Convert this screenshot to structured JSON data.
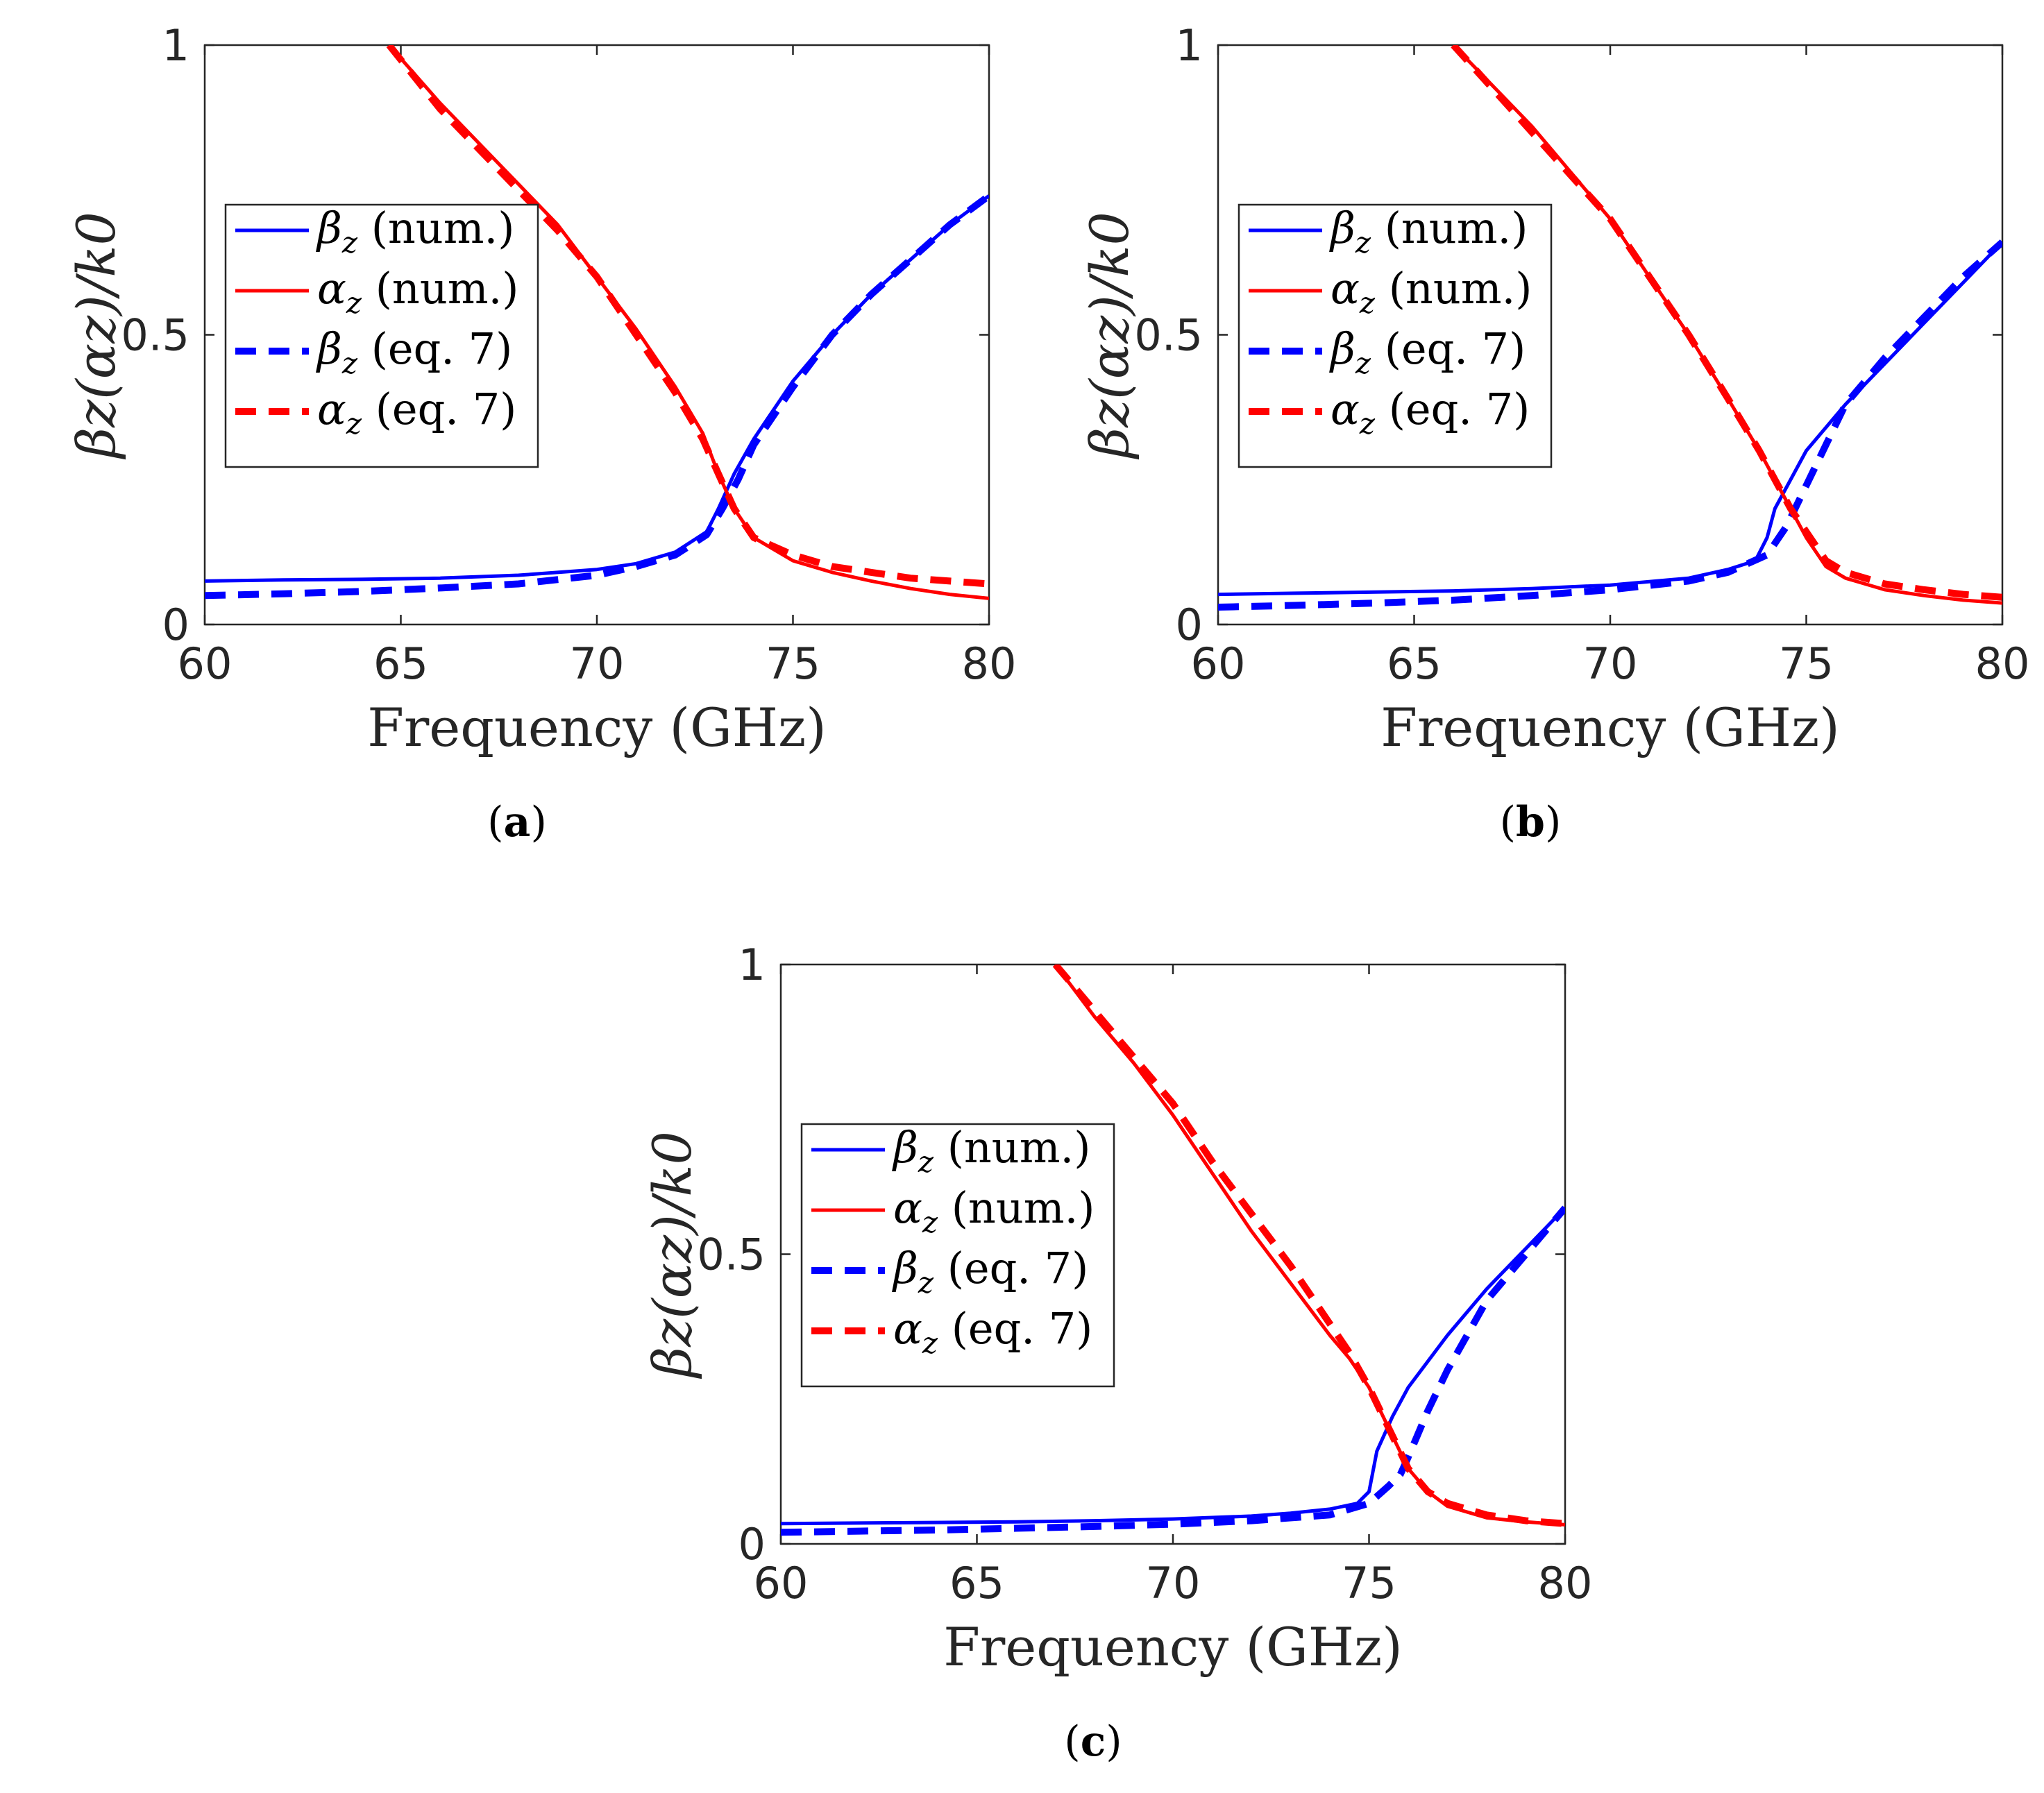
{
  "chart_data": [
    {
      "type": "line",
      "caption": "a",
      "xlabel": "Frequency (GHz)",
      "ylabel": "βz(αz)/k0",
      "xlim": [
        60,
        80
      ],
      "ylim": [
        0,
        1
      ],
      "xticks": [
        "60",
        "65",
        "70",
        "75",
        "80"
      ],
      "yticks": [
        "0",
        "0.5",
        "1"
      ],
      "legend": [
        "βz (num.)",
        "αz (num.)",
        "βz (eq. 7)",
        "αz (eq. 7)"
      ],
      "legend_position": "center-left",
      "series": [
        {
          "name": "βz (num.)",
          "color": "#0000ff",
          "style": "solid",
          "x": [
            60,
            62,
            64,
            66,
            68,
            70,
            71,
            72,
            72.8,
            73.1,
            73.5,
            74,
            75,
            76,
            77,
            78,
            79,
            80
          ],
          "y": [
            0.075,
            0.077,
            0.078,
            0.08,
            0.085,
            0.095,
            0.105,
            0.125,
            0.16,
            0.2,
            0.26,
            0.32,
            0.42,
            0.5,
            0.57,
            0.63,
            0.69,
            0.74
          ]
        },
        {
          "name": "αz (num.)",
          "color": "#ff0000",
          "style": "solid",
          "x": [
            64.7,
            66,
            68,
            69,
            70,
            71,
            72,
            72.7,
            73.1,
            73.5,
            74,
            75,
            76,
            77,
            78,
            79,
            80
          ],
          "y": [
            1.0,
            0.9,
            0.76,
            0.69,
            0.6,
            0.51,
            0.41,
            0.33,
            0.26,
            0.2,
            0.15,
            0.11,
            0.09,
            0.075,
            0.062,
            0.052,
            0.045
          ]
        },
        {
          "name": "βz (eq. 7)",
          "color": "#0000ff",
          "style": "dashed",
          "x": [
            60,
            62,
            64,
            66,
            68,
            70,
            71,
            72,
            72.8,
            73.2,
            73.6,
            74,
            75,
            76,
            77,
            78,
            79,
            80
          ],
          "y": [
            0.05,
            0.053,
            0.057,
            0.063,
            0.07,
            0.085,
            0.1,
            0.12,
            0.155,
            0.2,
            0.25,
            0.31,
            0.41,
            0.5,
            0.57,
            0.63,
            0.69,
            0.74
          ]
        },
        {
          "name": "αz (eq. 7)",
          "color": "#ff0000",
          "style": "dashed",
          "x": [
            64.7,
            66,
            68,
            69,
            70,
            71,
            72,
            72.7,
            73.1,
            73.5,
            74,
            75,
            76,
            77,
            78,
            79,
            80
          ],
          "y": [
            1.0,
            0.89,
            0.75,
            0.68,
            0.6,
            0.5,
            0.4,
            0.32,
            0.26,
            0.2,
            0.15,
            0.12,
            0.1,
            0.09,
            0.08,
            0.075,
            0.07
          ]
        }
      ]
    },
    {
      "type": "line",
      "caption": "b",
      "xlabel": "Frequency (GHz)",
      "ylabel": "βz(αz)/k0",
      "xlim": [
        60,
        80
      ],
      "ylim": [
        0,
        1
      ],
      "xticks": [
        "60",
        "65",
        "70",
        "75",
        "80"
      ],
      "yticks": [
        "0",
        "0.5",
        "1"
      ],
      "legend": [
        "βz (num.)",
        "αz (num.)",
        "βz (eq. 7)",
        "αz (eq. 7)"
      ],
      "legend_position": "center-left",
      "series": [
        {
          "name": "βz (num.)",
          "color": "#0000ff",
          "style": "solid",
          "x": [
            60,
            62,
            64,
            66,
            68,
            70,
            72,
            73,
            73.7,
            74,
            74.2,
            74.6,
            75,
            76,
            77,
            78,
            79,
            80
          ],
          "y": [
            0.052,
            0.054,
            0.056,
            0.058,
            0.062,
            0.068,
            0.08,
            0.095,
            0.11,
            0.15,
            0.2,
            0.25,
            0.3,
            0.38,
            0.45,
            0.52,
            0.59,
            0.66
          ]
        },
        {
          "name": "αz (num.)",
          "color": "#ff0000",
          "style": "solid",
          "x": [
            66,
            68,
            70,
            71,
            72,
            73,
            73.8,
            74.2,
            74.6,
            75,
            75.5,
            76,
            77,
            78,
            79,
            80
          ],
          "y": [
            1.0,
            0.86,
            0.7,
            0.6,
            0.5,
            0.39,
            0.3,
            0.25,
            0.2,
            0.15,
            0.1,
            0.08,
            0.06,
            0.05,
            0.042,
            0.037
          ]
        },
        {
          "name": "βz (eq. 7)",
          "color": "#0000ff",
          "style": "dashed",
          "x": [
            60,
            62,
            64,
            66,
            68,
            70,
            72,
            73,
            74,
            74.5,
            75,
            75.5,
            76,
            77,
            78,
            79,
            80
          ],
          "y": [
            0.03,
            0.033,
            0.037,
            0.042,
            0.05,
            0.06,
            0.075,
            0.09,
            0.12,
            0.17,
            0.24,
            0.31,
            0.38,
            0.46,
            0.53,
            0.6,
            0.66
          ]
        },
        {
          "name": "αz (eq. 7)",
          "color": "#ff0000",
          "style": "dashed",
          "x": [
            66,
            68,
            70,
            71,
            72,
            73,
            73.8,
            74.2,
            74.6,
            75,
            75.5,
            76,
            77,
            78,
            79,
            80
          ],
          "y": [
            1.0,
            0.85,
            0.7,
            0.6,
            0.5,
            0.39,
            0.3,
            0.25,
            0.2,
            0.16,
            0.11,
            0.09,
            0.07,
            0.06,
            0.052,
            0.047
          ]
        }
      ]
    },
    {
      "type": "line",
      "caption": "c",
      "xlabel": "Frequency (GHz)",
      "ylabel": "βz(αz)/k0",
      "xlim": [
        60,
        80
      ],
      "ylim": [
        0,
        1
      ],
      "xticks": [
        "60",
        "65",
        "70",
        "75",
        "80"
      ],
      "yticks": [
        "0",
        "0.5",
        "1"
      ],
      "legend": [
        "βz (num.)",
        "αz (num.)",
        "βz (eq. 7)",
        "αz (eq. 7)"
      ],
      "legend_position": "center-left",
      "series": [
        {
          "name": "βz (num.)",
          "color": "#0000ff",
          "style": "solid",
          "x": [
            60,
            62,
            64,
            66,
            68,
            70,
            72,
            73,
            74,
            74.7,
            75,
            75.2,
            75.6,
            76,
            77,
            78,
            79,
            80
          ],
          "y": [
            0.035,
            0.036,
            0.037,
            0.038,
            0.04,
            0.043,
            0.048,
            0.053,
            0.06,
            0.07,
            0.09,
            0.16,
            0.22,
            0.27,
            0.36,
            0.44,
            0.51,
            0.58
          ]
        },
        {
          "name": "αz (num.)",
          "color": "#ff0000",
          "style": "solid",
          "x": [
            67,
            68,
            69,
            70,
            71,
            72,
            73,
            74,
            74.5,
            75,
            75.5,
            76,
            76.5,
            77,
            78,
            79,
            80
          ],
          "y": [
            1.0,
            0.91,
            0.83,
            0.74,
            0.64,
            0.54,
            0.45,
            0.36,
            0.32,
            0.27,
            0.2,
            0.13,
            0.09,
            0.065,
            0.045,
            0.038,
            0.033
          ]
        },
        {
          "name": "βz (eq. 7)",
          "color": "#0000ff",
          "style": "dashed",
          "x": [
            60,
            62,
            64,
            66,
            68,
            70,
            72,
            74,
            75,
            75.5,
            75.8,
            76,
            76.5,
            77,
            78,
            79,
            80
          ],
          "y": [
            0.02,
            0.022,
            0.024,
            0.027,
            0.03,
            0.034,
            0.04,
            0.05,
            0.07,
            0.1,
            0.12,
            0.15,
            0.23,
            0.3,
            0.42,
            0.5,
            0.58
          ]
        },
        {
          "name": "αz (eq. 7)",
          "color": "#ff0000",
          "style": "dashed",
          "x": [
            67,
            68,
            69,
            70,
            71,
            72,
            73,
            74,
            74.5,
            75,
            75.5,
            76,
            76.5,
            77,
            78,
            79,
            80
          ],
          "y": [
            1.0,
            0.92,
            0.84,
            0.76,
            0.66,
            0.57,
            0.48,
            0.38,
            0.33,
            0.27,
            0.2,
            0.13,
            0.09,
            0.07,
            0.05,
            0.04,
            0.035
          ]
        }
      ]
    }
  ]
}
